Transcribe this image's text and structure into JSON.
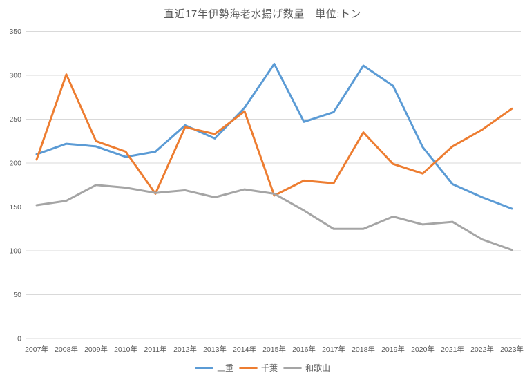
{
  "chart_data": {
    "type": "line",
    "title": "直近17年伊勢海老水揚げ数量　単位:トン",
    "x": [
      "2007年",
      "2008年",
      "2009年",
      "2010年",
      "2011年",
      "2012年",
      "2013年",
      "2014年",
      "2015年",
      "2016年",
      "2017年",
      "2018年",
      "2019年",
      "2020年",
      "2021年",
      "2022年",
      "2023年"
    ],
    "series": [
      {
        "name": "三重",
        "color": "#5B9BD5",
        "values": [
          210,
          222,
          219,
          207,
          213,
          243,
          228,
          263,
          313,
          247,
          258,
          311,
          288,
          218,
          176,
          161,
          148
        ]
      },
      {
        "name": "千葉",
        "color": "#ED7D31",
        "values": [
          204,
          301,
          225,
          213,
          165,
          241,
          233,
          259,
          163,
          180,
          177,
          235,
          199,
          188,
          219,
          238,
          262
        ]
      },
      {
        "name": "和歌山",
        "color": "#A5A5A5",
        "values": [
          152,
          157,
          175,
          172,
          166,
          169,
          161,
          170,
          165,
          146,
          125,
          125,
          139,
          130,
          133,
          113,
          101
        ]
      }
    ],
    "ylim": [
      0,
      350
    ],
    "yticks": [
      0,
      50,
      100,
      150,
      200,
      250,
      300,
      350
    ],
    "xlabel": "",
    "ylabel": "",
    "grid": "horizontal",
    "legend_position": "bottom"
  },
  "style": {
    "title_color": "#595959",
    "axis_text_color": "#595959",
    "grid_color": "#D9D9D9",
    "line_width": 3
  }
}
